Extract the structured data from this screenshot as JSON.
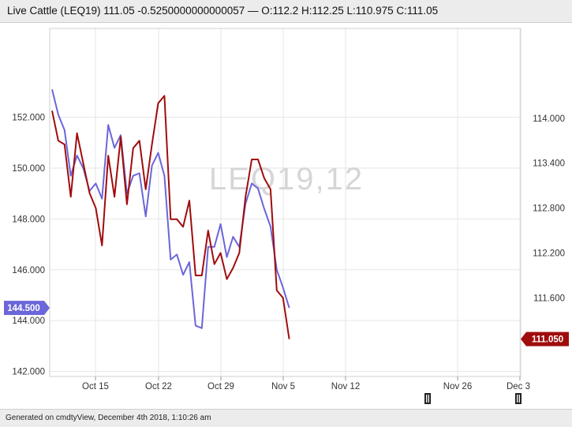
{
  "header": {
    "title": "Live Cattle (LEQ19) 111.05 -0.5250000000000057 — O:112.2 H:112.25 L:110.975 C:111.05"
  },
  "footer": {
    "generated": "Generated on cmdtyView, December 4th 2018, 1:10:26 am"
  },
  "chart_data": {
    "type": "line",
    "watermark": "LEQ19,12",
    "x_tick_labels": [
      "Oct 15",
      "Oct 22",
      "Oct 29",
      "Nov 5",
      "Nov 12",
      "Nov 26",
      "Dec 3"
    ],
    "left_axis": {
      "ylim": [
        141.8,
        155.5
      ],
      "ticks": [
        "142.000",
        "144.000",
        "146.000",
        "148.000",
        "150.000",
        "152.000"
      ],
      "ticks_values": [
        142,
        144,
        146,
        148,
        150,
        152
      ]
    },
    "right_axis": {
      "ylim": [
        110.55,
        115.2
      ],
      "ticks": [
        "111.600",
        "112.200",
        "112.800",
        "113.400",
        "114.000"
      ],
      "ticks_values": [
        111.6,
        112.2,
        112.8,
        113.4,
        114.0
      ]
    },
    "grid": true,
    "series": [
      {
        "axis": "left",
        "color": "#6b66d9",
        "current_label": "144.500",
        "values": [
          153.1,
          152.1,
          151.5,
          149.7,
          150.5,
          150.0,
          149.1,
          149.4,
          148.8,
          151.7,
          150.8,
          151.3,
          149.0,
          149.7,
          149.8,
          148.1,
          150.1,
          150.6,
          149.7,
          146.4,
          146.6,
          145.8,
          146.3,
          143.8,
          143.7,
          146.9,
          146.9,
          147.8,
          146.5,
          147.3,
          146.9,
          148.6,
          149.4,
          149.2,
          148.4,
          147.7,
          146.0,
          145.3,
          144.5
        ]
      },
      {
        "axis": "right",
        "color": "#a00c0c",
        "current_label": "111.050",
        "values": [
          114.1,
          113.7,
          113.65,
          112.95,
          113.8,
          113.4,
          113.0,
          112.8,
          112.3,
          113.5,
          112.95,
          113.75,
          112.85,
          113.6,
          113.7,
          113.05,
          113.65,
          114.2,
          114.3,
          112.65,
          112.65,
          112.55,
          112.9,
          111.9,
          111.9,
          112.5,
          112.05,
          112.2,
          111.85,
          112.0,
          112.2,
          112.95,
          113.45,
          113.45,
          113.2,
          113.05,
          111.7,
          111.6,
          111.05
        ]
      }
    ]
  }
}
